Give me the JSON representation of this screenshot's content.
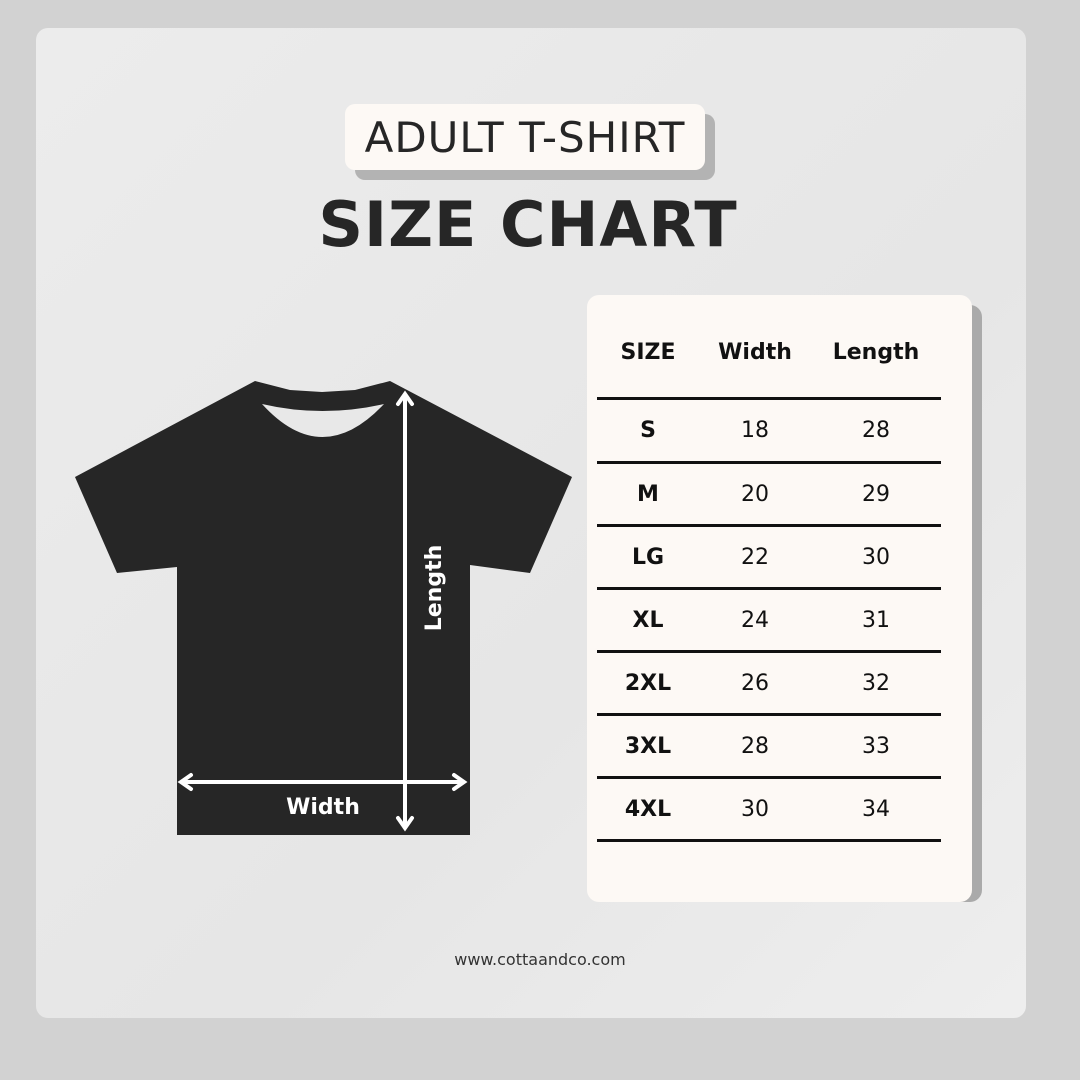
{
  "label": "ADULT T-SHIRT",
  "title": "SIZE CHART",
  "diagram": {
    "length_label": "Length",
    "width_label": "Width",
    "shirt_color": "#262626"
  },
  "table": {
    "headers": [
      "SIZE",
      "Width",
      "Length"
    ],
    "rows": [
      [
        "S",
        "18",
        "28"
      ],
      [
        "M",
        "20",
        "29"
      ],
      [
        "LG",
        "22",
        "30"
      ],
      [
        "XL",
        "24",
        "31"
      ],
      [
        "2XL",
        "26",
        "32"
      ],
      [
        "3XL",
        "28",
        "33"
      ],
      [
        "4XL",
        "30",
        "34"
      ]
    ]
  },
  "footer": "www.cottaandco.com"
}
